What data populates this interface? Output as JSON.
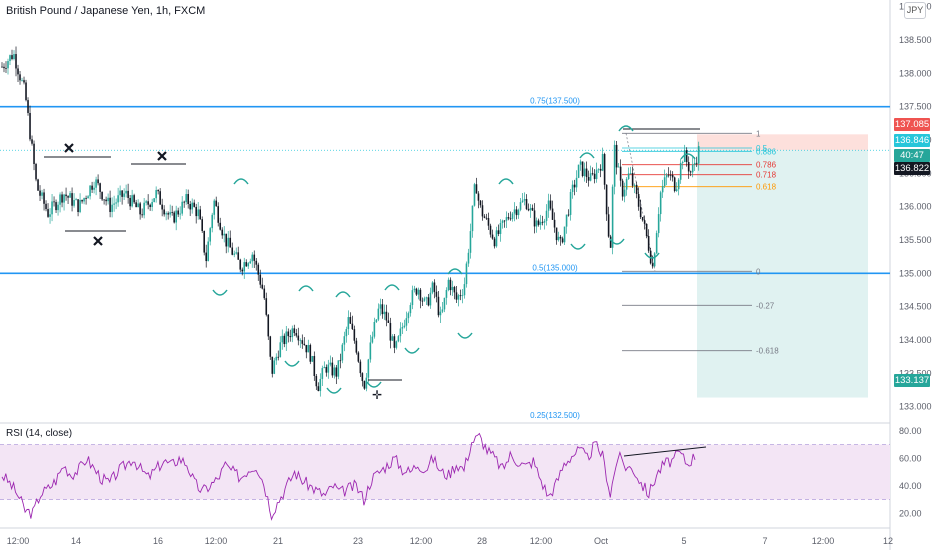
{
  "header": {
    "title": "British Pound / Japanese Yen, 1h, FXCM",
    "currency_badge": "JPY"
  },
  "rsi_panel": {
    "title": "RSI (14, close)"
  },
  "price_tags": {
    "upper_limit": "137.085",
    "current": "136.846",
    "countdown": "40:47",
    "bid": "136.822",
    "target": "133.137"
  },
  "colors": {
    "candle_up": "#26a69a",
    "candle_down": "#131722",
    "hline": "#2196f3",
    "rsi_line": "#9c27b0",
    "rsi_band": "#f3e5f5",
    "target_zone": "#e0f2f1",
    "stop_zone": "#fde0dc",
    "cyan": "#26c6da",
    "fib_red": "#e53935",
    "fib_orange": "#ff9800"
  },
  "chart_data": {
    "type": "candlestick",
    "price_axis": {
      "ylim": [
        132.8,
        139.1
      ],
      "ticks": [
        "139.000",
        "138.500",
        "138.000",
        "137.500",
        "137.000",
        "136.500",
        "136.000",
        "135.500",
        "135.000",
        "134.500",
        "134.000",
        "133.500",
        "133.000"
      ]
    },
    "time_axis": {
      "ticks": [
        "12:00",
        "14",
        "16",
        "12:00",
        "21",
        "23",
        "12:00",
        "28",
        "12:00",
        "Oct",
        "5",
        "7",
        "12:00",
        "12"
      ]
    },
    "horizontal_levels": [
      {
        "label": "0.75(137.500)",
        "value": 137.5
      },
      {
        "label": "0.5(135.000)",
        "value": 135.0
      },
      {
        "label": "0.25(132.500)",
        "value": 132.5
      }
    ],
    "fib_levels": [
      {
        "label": "1",
        "value": 137.1,
        "color": "#787b86"
      },
      {
        "label": "0.5",
        "value": 136.88,
        "color": "#26c6da"
      },
      {
        "label": "0.886",
        "value": 136.83,
        "color": "#26c6da"
      },
      {
        "label": "0.786",
        "value": 136.63,
        "color": "#e53935"
      },
      {
        "label": "0.718",
        "value": 136.48,
        "color": "#e53935"
      },
      {
        "label": "0.618",
        "value": 136.3,
        "color": "#ff9800"
      },
      {
        "label": "0",
        "value": 135.03,
        "color": "#787b86"
      },
      {
        "label": "-0.27",
        "value": 134.52,
        "color": "#787b86"
      },
      {
        "label": "-0.618",
        "value": 133.84,
        "color": "#787b86"
      }
    ],
    "position": {
      "entry": 136.846,
      "stop": 137.085,
      "target": 133.137
    },
    "price_path": [
      [
        0,
        138.1
      ],
      [
        1.5,
        138.3
      ],
      [
        3,
        137.7
      ],
      [
        4.5,
        136.3
      ],
      [
        6,
        135.9
      ],
      [
        8,
        136.2
      ],
      [
        10,
        136.0
      ],
      [
        12,
        136.4
      ],
      [
        14,
        136.0
      ],
      [
        16,
        136.2
      ],
      [
        18,
        135.9
      ],
      [
        20,
        136.2
      ],
      [
        22,
        135.8
      ],
      [
        24,
        136.1
      ],
      [
        25.5,
        135.9
      ],
      [
        26.5,
        135.2
      ],
      [
        27.5,
        136.1
      ],
      [
        29,
        135.5
      ],
      [
        31,
        135.1
      ],
      [
        32.5,
        135.3
      ],
      [
        34,
        134.7
      ],
      [
        35,
        133.5
      ],
      [
        36,
        133.9
      ],
      [
        38,
        134.2
      ],
      [
        40,
        133.8
      ],
      [
        41,
        133.3
      ],
      [
        42,
        133.6
      ],
      [
        43.5,
        133.5
      ],
      [
        45,
        134.3
      ],
      [
        46,
        133.9
      ],
      [
        47,
        133.3
      ],
      [
        48,
        134.0
      ],
      [
        49,
        134.5
      ],
      [
        50,
        134.3
      ],
      [
        51,
        133.8
      ],
      [
        52,
        134.2
      ],
      [
        53,
        134.6
      ],
      [
        54,
        134.8
      ],
      [
        55,
        134.5
      ],
      [
        56,
        134.8
      ],
      [
        57,
        134.3
      ],
      [
        58,
        134.9
      ],
      [
        59,
        134.6
      ],
      [
        60,
        134.8
      ],
      [
        61,
        135.8
      ],
      [
        61.5,
        136.4
      ],
      [
        62,
        136.0
      ],
      [
        64,
        135.5
      ],
      [
        66,
        135.9
      ],
      [
        68,
        136.1
      ],
      [
        69.5,
        135.7
      ],
      [
        71,
        136.0
      ],
      [
        72.5,
        135.4
      ],
      [
        74,
        136.2
      ],
      [
        75,
        136.6
      ],
      [
        76.5,
        136.4
      ],
      [
        78,
        136.7
      ],
      [
        79,
        135.3
      ],
      [
        79.5,
        136.9
      ],
      [
        80.5,
        136.2
      ],
      [
        81.5,
        136.5
      ],
      [
        83,
        135.9
      ],
      [
        84,
        135.4
      ],
      [
        84.5,
        135.1
      ],
      [
        85.5,
        136.2
      ],
      [
        86.5,
        136.5
      ],
      [
        87.5,
        136.3
      ],
      [
        88.5,
        136.8
      ],
      [
        89.5,
        136.5
      ],
      [
        90.5,
        136.85
      ]
    ],
    "rsi": {
      "ylim": [
        10,
        85
      ],
      "ticks": [
        "80.00",
        "60.00",
        "40.00",
        "20.00"
      ],
      "overbought": 70,
      "oversold": 30,
      "path": [
        [
          0,
          48
        ],
        [
          1,
          42
        ],
        [
          2,
          34
        ],
        [
          3,
          22
        ],
        [
          4,
          20
        ],
        [
          5,
          34
        ],
        [
          6,
          38
        ],
        [
          7,
          44
        ],
        [
          8,
          55
        ],
        [
          9,
          48
        ],
        [
          10,
          52
        ],
        [
          11,
          60
        ],
        [
          12,
          52
        ],
        [
          13,
          45
        ],
        [
          14,
          42
        ],
        [
          15,
          50
        ],
        [
          16,
          55
        ],
        [
          17,
          60
        ],
        [
          18,
          52
        ],
        [
          19,
          46
        ],
        [
          20,
          52
        ],
        [
          21,
          58
        ],
        [
          22,
          55
        ],
        [
          23,
          60
        ],
        [
          24,
          56
        ],
        [
          25,
          42
        ],
        [
          26,
          36
        ],
        [
          27,
          40
        ],
        [
          28,
          45
        ],
        [
          29,
          55
        ],
        [
          30,
          50
        ],
        [
          31,
          46
        ],
        [
          32,
          52
        ],
        [
          33,
          55
        ],
        [
          34,
          42
        ],
        [
          35,
          20
        ],
        [
          36,
          30
        ],
        [
          37,
          40
        ],
        [
          38,
          50
        ],
        [
          39,
          44
        ],
        [
          40,
          40
        ],
        [
          41,
          36
        ],
        [
          42,
          33
        ],
        [
          43,
          40
        ],
        [
          44,
          35
        ],
        [
          45,
          38
        ],
        [
          46,
          40
        ],
        [
          47,
          30
        ],
        [
          48,
          45
        ],
        [
          49,
          50
        ],
        [
          50,
          55
        ],
        [
          51,
          60
        ],
        [
          52,
          52
        ],
        [
          53,
          50
        ],
        [
          54,
          56
        ],
        [
          55,
          52
        ],
        [
          56,
          60
        ],
        [
          57,
          50
        ],
        [
          58,
          48
        ],
        [
          59,
          56
        ],
        [
          60,
          52
        ],
        [
          61,
          72
        ],
        [
          62,
          76
        ],
        [
          63,
          66
        ],
        [
          64,
          60
        ],
        [
          65,
          52
        ],
        [
          66,
          62
        ],
        [
          67,
          58
        ],
        [
          68,
          54
        ],
        [
          69,
          58
        ],
        [
          70,
          44
        ],
        [
          71,
          32
        ],
        [
          72,
          42
        ],
        [
          73,
          56
        ],
        [
          74,
          62
        ],
        [
          75,
          66
        ],
        [
          76,
          60
        ],
        [
          77,
          70
        ],
        [
          78,
          62
        ],
        [
          79,
          34
        ],
        [
          80,
          62
        ],
        [
          81,
          54
        ],
        [
          82,
          52
        ],
        [
          83,
          42
        ],
        [
          84,
          34
        ],
        [
          85,
          48
        ],
        [
          86,
          56
        ],
        [
          87,
          58
        ],
        [
          88,
          64
        ],
        [
          89,
          56
        ],
        [
          90,
          62
        ]
      ]
    }
  }
}
